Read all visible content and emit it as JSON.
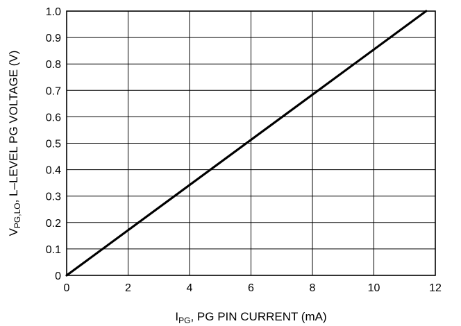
{
  "chart_data": {
    "type": "line",
    "xlabel": {
      "symbol": "I",
      "subscript": "PG",
      "rest": ", PG PIN CURRENT (mA)"
    },
    "ylabel": {
      "symbol": "V",
      "subscript": "PG,LO",
      "rest": ", L–LEVEL PG VOLTAGE (V)"
    },
    "xlim": [
      0,
      12
    ],
    "ylim": [
      0,
      1.0
    ],
    "x_ticks": [
      0,
      2,
      4,
      6,
      8,
      10,
      12
    ],
    "x_tick_labels": [
      "0",
      "2",
      "4",
      "6",
      "8",
      "10",
      "12"
    ],
    "y_ticks": [
      0,
      0.1,
      0.2,
      0.3,
      0.4,
      0.5,
      0.6,
      0.7,
      0.8,
      0.9,
      1.0
    ],
    "y_tick_labels": [
      "0",
      "0.1",
      "0.2",
      "0.3",
      "0.4",
      "0.5",
      "0.6",
      "0.7",
      "0.8",
      "0.9",
      "1.0"
    ],
    "grid": true,
    "series": [
      {
        "x": [
          0,
          11.7
        ],
        "y": [
          0,
          1.0
        ],
        "color": "#000000"
      }
    ]
  }
}
